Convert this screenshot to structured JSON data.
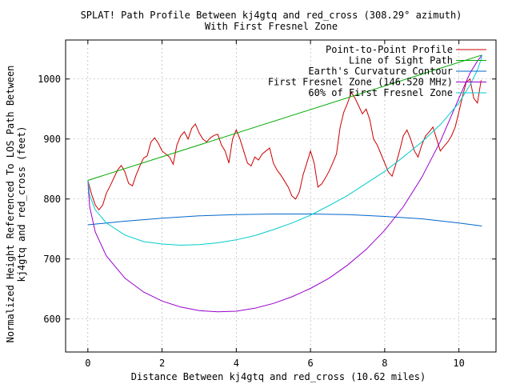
{
  "chart_data": {
    "type": "line",
    "title": "SPLAT! Path Profile Between kj4gtq and red_cross (308.29° azimuth)",
    "subtitle": "With First Fresnel Zone",
    "xlabel": "Distance Between kj4gtq and red_cross (10.62 miles)",
    "ylabel": "Normalized Height Referenced To LOS Path Between",
    "ylabel2": "kj4gtq and red_cross (feet)",
    "xlim": [
      -0.6,
      11.0
    ],
    "ylim": [
      545,
      1065
    ],
    "x_ticks": [
      0,
      2,
      4,
      6,
      8,
      10
    ],
    "y_ticks": [
      600,
      700,
      800,
      900,
      1000
    ],
    "x_tick_labels": [
      "0",
      "2",
      "4",
      "6",
      "8",
      "10"
    ],
    "y_tick_labels": [
      "600",
      "700",
      "800",
      "900",
      "1000"
    ],
    "grid": true,
    "legend_position": "top-right",
    "series": [
      {
        "name": "Point-to-Point Profile",
        "color": "#cc0000",
        "x": [
          0,
          0.1,
          0.2,
          0.3,
          0.4,
          0.5,
          0.6,
          0.7,
          0.8,
          0.9,
          1.0,
          1.1,
          1.2,
          1.3,
          1.4,
          1.5,
          1.6,
          1.7,
          1.8,
          1.9,
          2.0,
          2.1,
          2.2,
          2.3,
          2.4,
          2.5,
          2.6,
          2.7,
          2.8,
          2.9,
          3.0,
          3.1,
          3.2,
          3.3,
          3.4,
          3.5,
          3.6,
          3.7,
          3.8,
          3.9,
          4.0,
          4.1,
          4.2,
          4.3,
          4.4,
          4.5,
          4.6,
          4.7,
          4.8,
          4.9,
          5.0,
          5.1,
          5.2,
          5.3,
          5.4,
          5.5,
          5.6,
          5.7,
          5.8,
          5.9,
          6.0,
          6.1,
          6.2,
          6.3,
          6.4,
          6.5,
          6.6,
          6.7,
          6.8,
          6.9,
          7.0,
          7.1,
          7.2,
          7.3,
          7.4,
          7.5,
          7.6,
          7.7,
          7.8,
          7.9,
          8.0,
          8.1,
          8.2,
          8.3,
          8.4,
          8.5,
          8.6,
          8.7,
          8.8,
          8.9,
          9.0,
          9.1,
          9.2,
          9.3,
          9.4,
          9.5,
          9.6,
          9.7,
          9.8,
          9.9,
          10.0,
          10.1,
          10.2,
          10.3,
          10.4,
          10.5,
          10.6
        ],
        "values": [
          831,
          808,
          790,
          782,
          790,
          810,
          822,
          835,
          848,
          856,
          845,
          826,
          822,
          840,
          855,
          868,
          872,
          895,
          902,
          893,
          880,
          875,
          870,
          858,
          890,
          905,
          912,
          900,
          918,
          925,
          910,
          900,
          895,
          902,
          906,
          908,
          890,
          880,
          860,
          900,
          915,
          900,
          880,
          860,
          855,
          870,
          865,
          875,
          880,
          885,
          860,
          848,
          840,
          830,
          820,
          805,
          800,
          812,
          840,
          860,
          880,
          860,
          820,
          825,
          835,
          846,
          860,
          875,
          920,
          945,
          960,
          978,
          968,
          955,
          942,
          950,
          932,
          900,
          890,
          875,
          860,
          845,
          838,
          858,
          880,
          905,
          915,
          900,
          880,
          870,
          890,
          905,
          912,
          920,
          900,
          880,
          888,
          895,
          905,
          920,
          945,
          972,
          995,
          1000,
          968,
          960,
          998
        ]
      },
      {
        "name": "Line of Sight Path",
        "color": "#00aa00",
        "x": [
          0,
          10.62
        ],
        "values": [
          831,
          1040
        ]
      },
      {
        "name": "Earth's Curvature Contour",
        "color": "#0066cc",
        "x": [
          0,
          1,
          2,
          3,
          4,
          5,
          5.31,
          6,
          7,
          8,
          9,
          10,
          10.62
        ],
        "values": [
          757,
          763,
          768,
          772,
          774,
          775,
          775,
          775,
          774,
          771,
          767,
          760,
          755
        ]
      },
      {
        "name": "First Fresnel Zone (146.520 MHz)",
        "color": "#9900cc",
        "x": [
          0,
          0.05,
          0.2,
          0.5,
          1,
          1.5,
          2,
          2.5,
          3,
          3.5,
          4,
          4.5,
          5,
          5.5,
          6,
          6.5,
          7,
          7.5,
          8,
          8.5,
          9,
          9.5,
          10,
          10.3,
          10.5,
          10.6,
          10.62
        ],
        "values": [
          831,
          787,
          745,
          705,
          668,
          645,
          630,
          620,
          614,
          612,
          613,
          618,
          626,
          637,
          651,
          668,
          690,
          716,
          748,
          787,
          836,
          896,
          968,
          1010,
          1030,
          1038,
          1040
        ]
      },
      {
        "name": "60% of First Fresnel Zone",
        "color": "#00cccc",
        "x": [
          0,
          0.05,
          0.2,
          0.5,
          1,
          1.5,
          2,
          2.5,
          3,
          3.5,
          4,
          4.5,
          5,
          5.5,
          6,
          6.5,
          7,
          7.5,
          8,
          8.5,
          9,
          9.5,
          10,
          10.3,
          10.5,
          10.6,
          10.62
        ],
        "values": [
          831,
          806,
          782,
          760,
          740,
          729,
          725,
          723,
          724,
          727,
          732,
          739,
          749,
          760,
          773,
          789,
          806,
          826,
          846,
          870,
          895,
          924,
          960,
          990,
          1015,
          1033,
          1040
        ]
      }
    ]
  }
}
